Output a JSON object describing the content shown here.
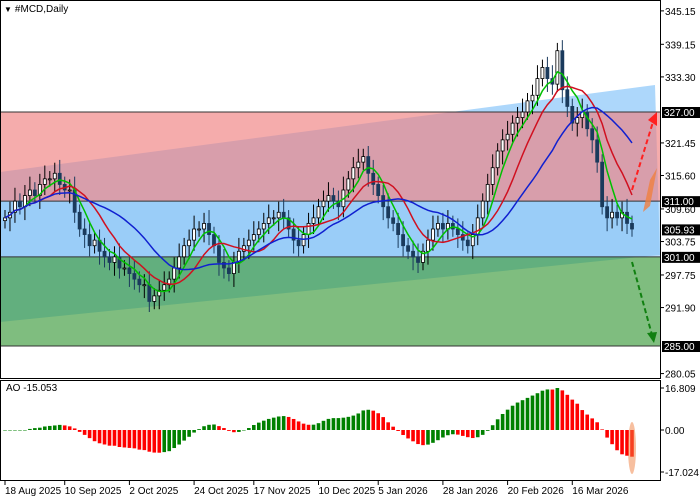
{
  "title": "#MCD,Daily",
  "ao_label": "AO -15.053",
  "price_axis": [
    "345.15",
    "339.15",
    "333.30",
    "321.45",
    "315.60",
    "309.60",
    "303.75",
    "297.75",
    "291.90",
    "280.05"
  ],
  "price_axis_values": [
    345.15,
    339.15,
    333.3,
    321.45,
    315.6,
    309.6,
    303.75,
    297.75,
    291.9,
    280.05
  ],
  "level_labels": [
    {
      "text": "327.00",
      "value": 327.0
    },
    {
      "text": "311.00",
      "value": 311.0
    },
    {
      "text": "305.93",
      "value": 305.93
    },
    {
      "text": "301.00",
      "value": 301.0
    },
    {
      "text": "285.00",
      "value": 285.0
    }
  ],
  "ao_axis": {
    "max": "16.809",
    "zero": "0.00",
    "min": "-17.024",
    "max_value": 16.809,
    "min_value": -17.024
  },
  "date_labels": [
    "18 Aug 2025",
    "10 Sep 2025",
    "2 Oct 2025",
    "24 Oct 2025",
    "17 Nov 2025",
    "10 Dec 2025",
    "5 Jan 2026",
    "28 Jan 2026",
    "20 Feb 2026",
    "16 Mar 2026"
  ],
  "date_label_bar_index": [
    0,
    12,
    25,
    38,
    50,
    63,
    75,
    88,
    101,
    114
  ],
  "colors": {
    "bull": "#000000",
    "bear": "#1a3a5c",
    "resistance_zone": "#f08080",
    "range_zone": "#87c3f5",
    "support_zone": "#3a9a3a",
    "channel": "#9fd0fa",
    "ma_fast": "#00c000",
    "ma_mid": "#d01020",
    "ma_slow": "#1020d0",
    "ao_up": "#008000",
    "ao_down": "#ff0000",
    "arrow_up": "#ff2020",
    "arrow_down": "#108010"
  },
  "chart_data": {
    "type": "candlestick",
    "title": "#MCD,Daily",
    "ylim": [
      280.05,
      345.15
    ],
    "closes": [
      308,
      309,
      311,
      310,
      312,
      313,
      312,
      314,
      315,
      315,
      316,
      314,
      313,
      313,
      309,
      306,
      305,
      303,
      304,
      302,
      301,
      300,
      301,
      299,
      299,
      298,
      297,
      296,
      296,
      293,
      294,
      295,
      296,
      297,
      299,
      301,
      303,
      304,
      306,
      306,
      307,
      305,
      303,
      300,
      299,
      298,
      300,
      302,
      303,
      304,
      305,
      306,
      307,
      308,
      308,
      309,
      308,
      306,
      304,
      303,
      305,
      307,
      308,
      310,
      311,
      312,
      311,
      310,
      313,
      315,
      317,
      318,
      319,
      316,
      314,
      312,
      310,
      308,
      307,
      305,
      303,
      302,
      301,
      300,
      302,
      304,
      306,
      307,
      306,
      307,
      306,
      305,
      304,
      303,
      305,
      308,
      311,
      314,
      317,
      320,
      322,
      323,
      325,
      326,
      327,
      329,
      330,
      333,
      335,
      333,
      332,
      338,
      331,
      328,
      325,
      326,
      327,
      324,
      322,
      318,
      310,
      308,
      309,
      308,
      309,
      307,
      306
    ],
    "zones": [
      {
        "from": 311,
        "to": 327,
        "kind": "resistance"
      },
      {
        "from": 301,
        "to": 311,
        "kind": "range"
      },
      {
        "from": 285,
        "to": 301,
        "kind": "support"
      }
    ],
    "targets": {
      "up": 327.0,
      "down": 285.0
    },
    "current_price": 305.93,
    "indicator": {
      "name": "AO",
      "value": -15.053
    }
  }
}
